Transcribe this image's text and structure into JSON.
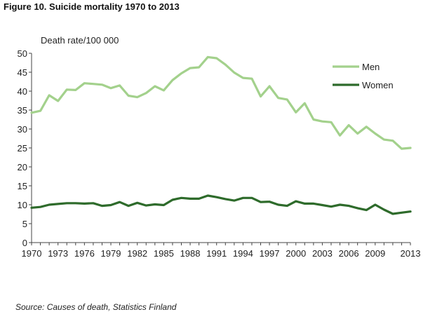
{
  "figure": {
    "title": "Figure 10. Suicide mortality 1970 to 2013",
    "source": "Source: Causes of death, Statistics Finland"
  },
  "chart_data": {
    "type": "line",
    "ylabel": "Death rate/100 000",
    "xlabel": "",
    "ylim": [
      0,
      50
    ],
    "yticks": [
      0,
      5,
      10,
      15,
      20,
      25,
      30,
      35,
      40,
      45,
      50
    ],
    "xlim": [
      1970,
      2013
    ],
    "xticks": [
      1970,
      1973,
      1976,
      1979,
      1982,
      1985,
      1988,
      1991,
      1994,
      1997,
      2000,
      2003,
      2006,
      2009,
      2013
    ],
    "grid": false,
    "legend_position": "top-right",
    "x": [
      1970,
      1971,
      1972,
      1973,
      1974,
      1975,
      1976,
      1977,
      1978,
      1979,
      1980,
      1981,
      1982,
      1983,
      1984,
      1985,
      1986,
      1987,
      1988,
      1989,
      1990,
      1991,
      1992,
      1993,
      1994,
      1995,
      1996,
      1997,
      1998,
      1999,
      2000,
      2001,
      2002,
      2003,
      2004,
      2005,
      2006,
      2007,
      2008,
      2009,
      2010,
      2011,
      2012,
      2013
    ],
    "series": [
      {
        "name": "Men",
        "color": "#a3d18c",
        "values": [
          34.3,
          34.8,
          38.9,
          37.4,
          40.4,
          40.3,
          42.1,
          41.9,
          41.7,
          40.8,
          41.5,
          38.8,
          38.4,
          39.5,
          41.3,
          40.2,
          42.9,
          44.7,
          46.1,
          46.3,
          49.0,
          48.7,
          47.0,
          44.9,
          43.5,
          43.3,
          38.6,
          41.3,
          38.2,
          37.8,
          34.4,
          36.8,
          32.5,
          32.0,
          31.8,
          28.3,
          31.0,
          28.8,
          30.6,
          28.8,
          27.2,
          26.9,
          24.8,
          25.0
        ]
      },
      {
        "name": "Women",
        "color": "#2e6b2b",
        "values": [
          9.2,
          9.4,
          10.0,
          10.2,
          10.4,
          10.4,
          10.3,
          10.4,
          9.7,
          9.9,
          10.7,
          9.7,
          10.5,
          9.8,
          10.1,
          9.9,
          11.3,
          11.8,
          11.6,
          11.6,
          12.4,
          12.0,
          11.5,
          11.1,
          11.8,
          11.8,
          10.7,
          10.8,
          10.0,
          9.7,
          10.9,
          10.3,
          10.3,
          9.9,
          9.5,
          10.0,
          9.7,
          9.1,
          8.6,
          10.0,
          8.7,
          7.6,
          7.9,
          8.2
        ]
      }
    ]
  }
}
